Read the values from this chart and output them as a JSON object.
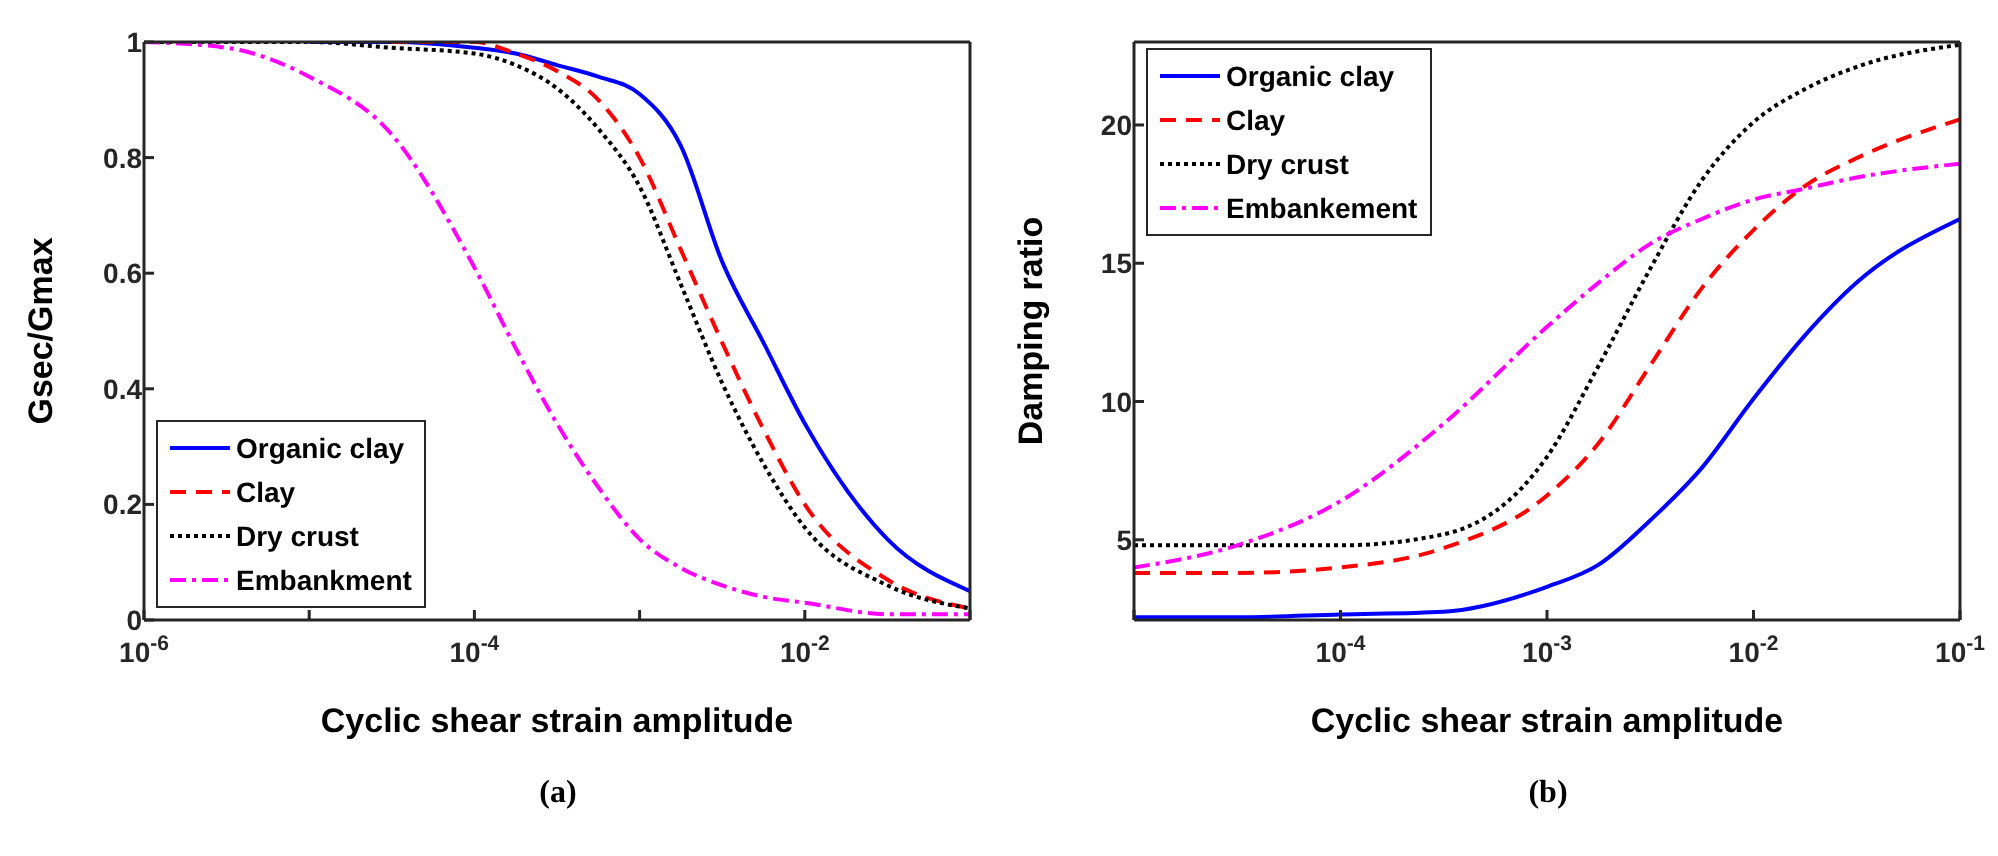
{
  "chart_data": [
    {
      "type": "line",
      "xlabel": "Cyclic shear strain amplitude",
      "ylabel": "Gsec/Gmax",
      "annotations": [
        "(a)"
      ],
      "log": "x",
      "grid": false,
      "legend": "bottom left",
      "marker": "none",
      "x": [
        1e-06,
        3.16e-06,
        1e-05,
        3.16e-05,
        0.0001,
        0.000178,
        0.000316,
        0.000562,
        0.001,
        0.00178,
        0.00316,
        0.00562,
        0.01,
        0.0316,
        0.1
      ],
      "xlim": [
        1e-06,
        0.1
      ],
      "xticks": [
        {
          "value": 1e-06,
          "label": "10$^{-6}$"
        },
        {
          "value": 1e-05,
          "label": null
        },
        {
          "value": 0.0001,
          "label": "10$^{-4}$"
        },
        {
          "value": 0.001,
          "label": null
        },
        {
          "value": 0.01,
          "label": "10$^{-2}$"
        },
        {
          "value": 0.1,
          "label": null
        }
      ],
      "ylim": [
        0,
        1
      ],
      "yticks": [
        0,
        0.2,
        0.4,
        0.6,
        0.8,
        1
      ],
      "series": [
        {
          "name": "Organic clay",
          "color": "#0000ff",
          "line_style": "solid",
          "values": [
            null,
            null,
            1,
            1,
            0.99,
            0.98,
            0.96,
            0.94,
            0.91,
            0.82,
            0.62,
            0.48,
            0.34,
            0.14,
            0.05
          ]
        },
        {
          "name": "Clay",
          "color": "#ff0000",
          "line_style": "dashed",
          "values": [
            null,
            null,
            null,
            1,
            1,
            0.98,
            0.95,
            0.9,
            0.8,
            0.64,
            0.48,
            0.33,
            0.2,
            0.07,
            0.02
          ]
        },
        {
          "name": "Dry crust",
          "color": "#000000",
          "line_style": "dotted",
          "values": [
            1,
            1,
            1,
            0.99,
            0.98,
            0.96,
            0.92,
            0.85,
            0.75,
            0.58,
            0.41,
            0.27,
            0.16,
            0.06,
            0.02
          ]
        },
        {
          "name": "Embankment",
          "color": "#ff00ff",
          "line_style": "dashdot",
          "values": [
            1,
            0.99,
            0.94,
            0.84,
            0.61,
            0.47,
            0.34,
            0.23,
            0.14,
            0.09,
            0.06,
            0.04,
            0.03,
            0.01,
            0.01
          ]
        }
      ]
    },
    {
      "type": "line",
      "xlabel": "Cyclic shear strain amplitude",
      "ylabel": "Damping ratio",
      "annotations": [
        "(b)"
      ],
      "log": "x",
      "grid": false,
      "legend": "top left",
      "marker": "none",
      "x": [
        1e-05,
        3.16e-05,
        0.0001,
        0.000316,
        0.001,
        0.00178,
        0.00316,
        0.00562,
        0.01,
        0.0178,
        0.0316,
        0.1
      ],
      "xlim": [
        1e-05,
        0.1
      ],
      "xticks": [
        {
          "value": 1e-05,
          "label": null
        },
        {
          "value": 0.0001,
          "label": "10$^{-4}$"
        },
        {
          "value": 0.001,
          "label": "10$^{-3}$"
        },
        {
          "value": 0.01,
          "label": "10$^{-2}$"
        },
        {
          "value": 0.1,
          "label": "10$^{-1}$"
        }
      ],
      "ylim": [
        2.1,
        23
      ],
      "yticks": [
        5,
        10,
        15,
        20
      ],
      "series": [
        {
          "name": "Organic clay",
          "color": "#0000ff",
          "line_style": "solid",
          "values": [
            2.2,
            2.2,
            2.3,
            2.4,
            3.3,
            4.1,
            5.7,
            7.6,
            10.1,
            12.4,
            14.3,
            16.6
          ]
        },
        {
          "name": "Clay",
          "color": "#ff0000",
          "line_style": "dashed",
          "values": [
            3.8,
            3.8,
            4.0,
            4.7,
            6.6,
            8.5,
            11.3,
            14.1,
            16.2,
            17.8,
            18.8,
            20.2
          ]
        },
        {
          "name": "Dry crust",
          "color": "#000000",
          "line_style": "dotted",
          "values": [
            4.8,
            4.8,
            4.8,
            5.2,
            8.0,
            11.3,
            14.8,
            18.0,
            20.1,
            21.3,
            22.1,
            22.9
          ]
        },
        {
          "name": "Embankement",
          "color": "#ff00ff",
          "line_style": "dashdot",
          "values": [
            4.0,
            4.8,
            6.4,
            9.2,
            12.7,
            14.3,
            15.7,
            16.6,
            17.3,
            17.7,
            18.1,
            18.6
          ]
        }
      ]
    }
  ]
}
